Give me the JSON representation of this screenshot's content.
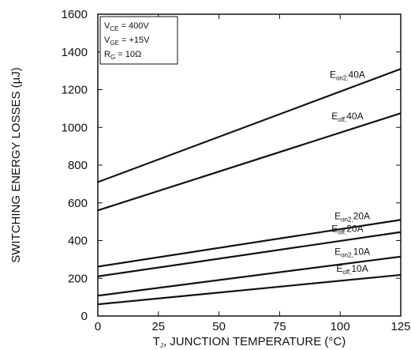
{
  "chart_data": {
    "type": "line",
    "xlabel": "T J, JUNCTION TEMPERATURE (°C)",
    "xlabel_parts": {
      "main": "T",
      "sub": "J",
      "rest": ", JUNCTION TEMPERATURE (°C)"
    },
    "ylabel": "SWITCHING ENERGY LOSSES (µJ)",
    "xlim": [
      0,
      125
    ],
    "ylim": [
      0,
      1600
    ],
    "x_ticks": [
      0,
      25,
      50,
      75,
      100,
      125
    ],
    "y_ticks": [
      0,
      200,
      400,
      600,
      800,
      1000,
      1200,
      1400,
      1600
    ],
    "grid": false,
    "conditions": [
      {
        "main": "V",
        "sub": "CE",
        "rest": " =  400V"
      },
      {
        "main": "V",
        "sub": "GE",
        "rest": " =  +15V"
      },
      {
        "main": "R",
        "sub": "G",
        "rest": " = 10Ω"
      }
    ],
    "series": [
      {
        "name": "Eon2,40A",
        "label": {
          "main": "E",
          "sub": "on2,",
          "rest": "40A"
        },
        "x": [
          0,
          125
        ],
        "y": [
          710,
          1310
        ],
        "color": "#111111"
      },
      {
        "name": "Eoff,40A",
        "label": {
          "main": "E",
          "sub": "off,",
          "rest": "40A"
        },
        "x": [
          0,
          125
        ],
        "y": [
          560,
          1075
        ],
        "color": "#111111"
      },
      {
        "name": "Eon2,20A",
        "label": {
          "main": "E",
          "sub": "on2,",
          "rest": "20A"
        },
        "x": [
          0,
          125
        ],
        "y": [
          262,
          510
        ],
        "color": "#111111"
      },
      {
        "name": "Eoff,20A",
        "label": {
          "main": "E",
          "sub": "off,",
          "rest": "20A"
        },
        "x": [
          0,
          125
        ],
        "y": [
          210,
          445
        ],
        "color": "#111111"
      },
      {
        "name": "Eon2,10A",
        "label": {
          "main": "E",
          "sub": "on2,",
          "rest": "10A"
        },
        "x": [
          0,
          125
        ],
        "y": [
          108,
          315
        ],
        "color": "#111111"
      },
      {
        "name": "Eoff,10A",
        "label": {
          "main": "E",
          "sub": "off,",
          "rest": "10A"
        },
        "x": [
          0,
          125
        ],
        "y": [
          62,
          218
        ],
        "color": "#111111"
      }
    ]
  }
}
